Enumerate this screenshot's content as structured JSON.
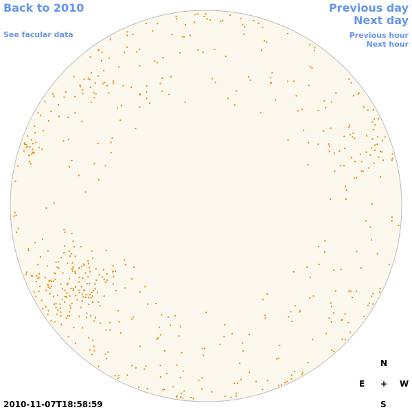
{
  "nav": {
    "back": "Back to 2010",
    "facular": "See facular data",
    "previous_day": "Previous day",
    "next_day": "Next day",
    "previous_hour": "Previous hour",
    "next_hour": "Next hour"
  },
  "timestamp": "2010-11-07T18:58:59",
  "compass": {
    "north": "N",
    "east": "E",
    "center": "+",
    "west": "W",
    "south": "S"
  }
}
